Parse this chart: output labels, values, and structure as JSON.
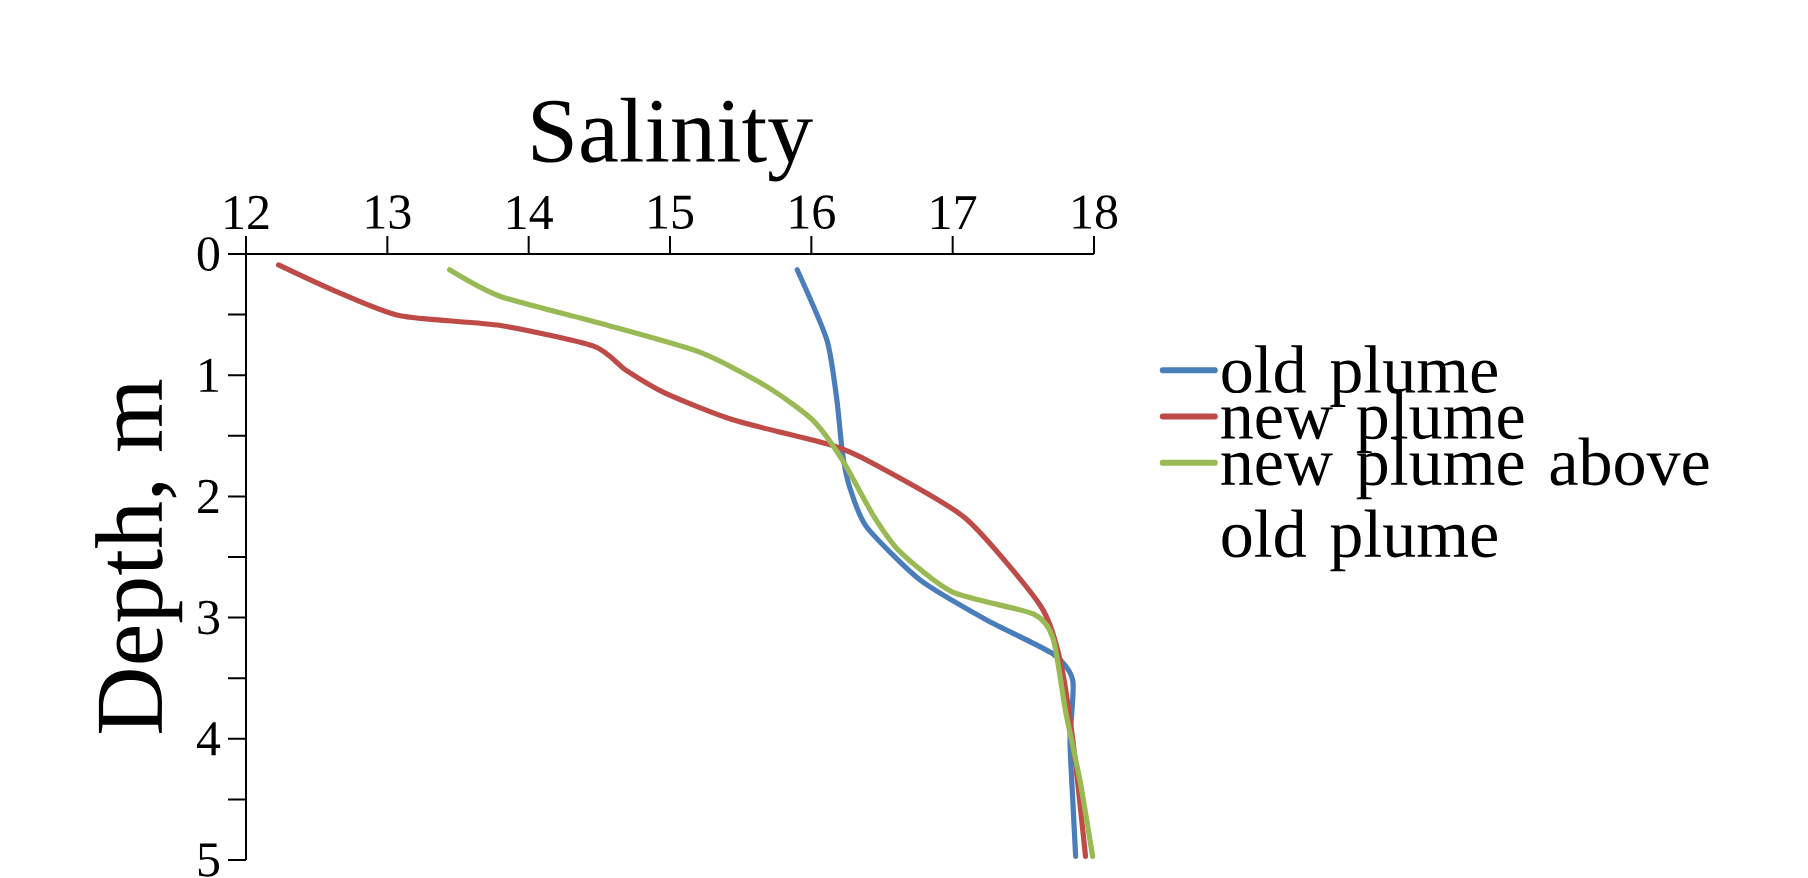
{
  "chart_data": {
    "type": "line",
    "xlabel": "Salinity",
    "ylabel": "Depth, m",
    "xlim": [
      12,
      18
    ],
    "xticks": [
      12,
      13,
      14,
      15,
      16,
      17,
      18
    ],
    "ylim": [
      5,
      0
    ],
    "yticks": [
      0,
      {
        "value": 0.5,
        "label": null
      },
      1,
      {
        "value": 1.5,
        "label": null
      },
      2,
      {
        "value": 2.5,
        "label": null
      },
      3,
      {
        "value": 3.5,
        "label": null
      },
      4,
      {
        "value": 4.5,
        "label": null
      },
      5
    ],
    "legend": "right",
    "grid": false,
    "marker": "none",
    "line_style": "solid",
    "series": [
      {
        "name": "old plume",
        "color": "#4a7ebb",
        "x": [
          15.9,
          16.11,
          16.18,
          16.22,
          16.27,
          16.39,
          16.77,
          17.24,
          17.71,
          17.85,
          17.83,
          17.85,
          17.87
        ],
        "values": [
          0.13,
          0.71,
          1.2,
          1.64,
          1.92,
          2.25,
          2.69,
          3.02,
          3.3,
          3.52,
          4.01,
          4.51,
          4.97
        ]
      },
      {
        "name": "new plume",
        "color": "#be4b48",
        "x": [
          12.23,
          12.62,
          13.09,
          13.8,
          14.46,
          14.69,
          14.97,
          15.45,
          16.15,
          16.44,
          17.09,
          17.62,
          17.76,
          17.85,
          17.94
        ],
        "values": [
          0.09,
          0.3,
          0.51,
          0.59,
          0.76,
          0.96,
          1.15,
          1.37,
          1.58,
          1.73,
          2.18,
          2.9,
          3.35,
          4.01,
          4.97
        ]
      },
      {
        "name": "new plume above old plume",
        "color": "#98b954",
        "x": [
          13.44,
          13.8,
          14.5,
          15.21,
          15.68,
          16.01,
          16.22,
          16.44,
          16.63,
          17.0,
          17.57,
          17.71,
          17.8,
          17.9,
          17.99
        ],
        "values": [
          0.13,
          0.35,
          0.57,
          0.81,
          1.09,
          1.37,
          1.7,
          2.16,
          2.46,
          2.79,
          2.97,
          3.17,
          3.78,
          4.34,
          4.97
        ]
      }
    ]
  }
}
